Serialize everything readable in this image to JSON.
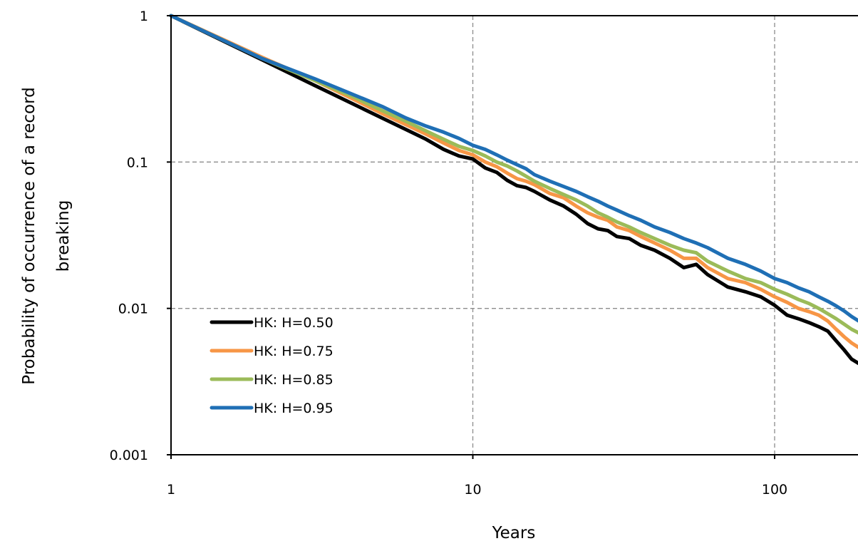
{
  "chart_data": {
    "type": "line",
    "title": "",
    "xlabel": "Years",
    "ylabel_lines": [
      "Probability of occurrence of a record",
      "breaking"
    ],
    "xscale": "log",
    "yscale": "log",
    "xlim": [
      1,
      200
    ],
    "ylim": [
      0.001,
      1
    ],
    "x_ticks": [
      {
        "value": 1,
        "label": "1"
      },
      {
        "value": 10,
        "label": "10"
      },
      {
        "value": 100,
        "label": "100"
      }
    ],
    "y_ticks": [
      {
        "value": 1,
        "label": "1"
      },
      {
        "value": 0.1,
        "label": "0.1"
      },
      {
        "value": 0.01,
        "label": "0.01"
      },
      {
        "value": 0.001,
        "label": "0.001"
      }
    ],
    "grid": "dashed",
    "legend_position": "bottom-left",
    "series": [
      {
        "name": "HK: H=0.50",
        "color": "#000000",
        "x": [
          1,
          2,
          3,
          4,
          5,
          6,
          7,
          8,
          9,
          10,
          11,
          12,
          13,
          14,
          15,
          16,
          18,
          20,
          22,
          24,
          26,
          28,
          30,
          33,
          36,
          40,
          45,
          50,
          55,
          60,
          70,
          80,
          90,
          100,
          110,
          120,
          130,
          140,
          150,
          160,
          170,
          180,
          190,
          200
        ],
        "y": [
          1,
          0.5,
          0.333,
          0.25,
          0.2,
          0.167,
          0.143,
          0.122,
          0.11,
          0.105,
          0.091,
          0.085,
          0.075,
          0.069,
          0.067,
          0.063,
          0.055,
          0.05,
          0.044,
          0.038,
          0.035,
          0.034,
          0.031,
          0.03,
          0.027,
          0.025,
          0.022,
          0.019,
          0.02,
          0.017,
          0.014,
          0.013,
          0.012,
          0.0105,
          0.009,
          0.0085,
          0.008,
          0.0075,
          0.007,
          0.006,
          0.0052,
          0.0045,
          0.0042,
          0.004
        ]
      },
      {
        "name": "HK: H=0.75",
        "color": "#F79646",
        "x": [
          1,
          2,
          3,
          4,
          5,
          6,
          7,
          8,
          9,
          10,
          11,
          12,
          13,
          14,
          15,
          16,
          18,
          20,
          22,
          24,
          26,
          28,
          30,
          33,
          36,
          40,
          45,
          50,
          55,
          60,
          70,
          80,
          90,
          100,
          110,
          120,
          130,
          140,
          150,
          160,
          170,
          180,
          190,
          200
        ],
        "y": [
          1,
          0.52,
          0.36,
          0.27,
          0.215,
          0.18,
          0.155,
          0.135,
          0.12,
          0.112,
          0.1,
          0.093,
          0.084,
          0.077,
          0.074,
          0.07,
          0.061,
          0.057,
          0.05,
          0.045,
          0.042,
          0.04,
          0.036,
          0.034,
          0.031,
          0.028,
          0.025,
          0.022,
          0.022,
          0.019,
          0.016,
          0.015,
          0.0135,
          0.012,
          0.011,
          0.01,
          0.0095,
          0.009,
          0.0082,
          0.0072,
          0.0064,
          0.0058,
          0.0054,
          0.005
        ]
      },
      {
        "name": "HK: H=0.85",
        "color": "#9BBB59",
        "x": [
          1,
          2,
          3,
          4,
          5,
          6,
          7,
          8,
          9,
          10,
          11,
          12,
          13,
          14,
          15,
          16,
          18,
          20,
          22,
          24,
          26,
          28,
          30,
          33,
          36,
          40,
          45,
          50,
          55,
          60,
          70,
          80,
          90,
          100,
          110,
          120,
          130,
          140,
          150,
          160,
          170,
          180,
          190,
          200
        ],
        "y": [
          1,
          0.51,
          0.36,
          0.28,
          0.225,
          0.19,
          0.163,
          0.143,
          0.128,
          0.12,
          0.11,
          0.1,
          0.094,
          0.087,
          0.08,
          0.074,
          0.066,
          0.06,
          0.055,
          0.05,
          0.045,
          0.042,
          0.039,
          0.036,
          0.033,
          0.03,
          0.027,
          0.025,
          0.024,
          0.021,
          0.018,
          0.016,
          0.015,
          0.0135,
          0.0125,
          0.0115,
          0.0108,
          0.01,
          0.0092,
          0.0085,
          0.0078,
          0.0072,
          0.0068,
          0.0065
        ]
      },
      {
        "name": "HK: H=0.95",
        "color": "#1F6FB5",
        "x": [
          1,
          2,
          3,
          4,
          5,
          6,
          7,
          8,
          9,
          10,
          11,
          12,
          13,
          14,
          15,
          16,
          18,
          20,
          22,
          24,
          26,
          28,
          30,
          33,
          36,
          40,
          45,
          50,
          55,
          60,
          70,
          80,
          90,
          100,
          110,
          120,
          130,
          140,
          150,
          160,
          170,
          180,
          190,
          200
        ],
        "y": [
          1,
          0.51,
          0.37,
          0.29,
          0.24,
          0.2,
          0.176,
          0.16,
          0.145,
          0.13,
          0.122,
          0.112,
          0.103,
          0.096,
          0.09,
          0.082,
          0.074,
          0.068,
          0.063,
          0.058,
          0.054,
          0.05,
          0.047,
          0.043,
          0.04,
          0.036,
          0.033,
          0.03,
          0.028,
          0.026,
          0.022,
          0.02,
          0.018,
          0.016,
          0.015,
          0.0138,
          0.013,
          0.012,
          0.0112,
          0.0104,
          0.0096,
          0.0088,
          0.0082,
          0.0078
        ]
      }
    ]
  }
}
